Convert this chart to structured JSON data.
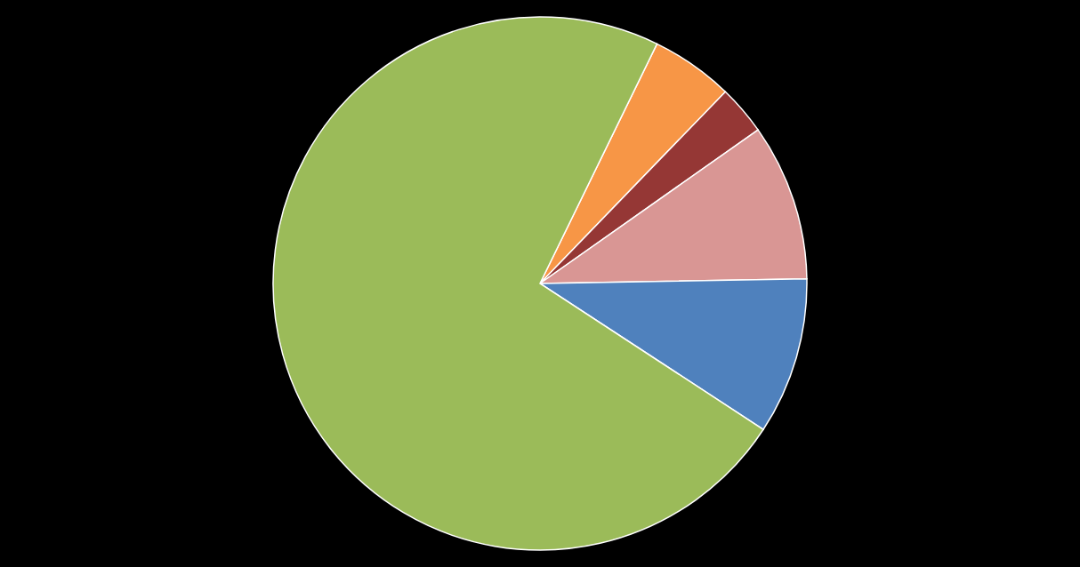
{
  "chart_data": {
    "type": "pie",
    "categories": [
      null,
      null,
      null,
      null,
      null
    ],
    "values": [
      5,
      3,
      9.5,
      9.5,
      73
    ],
    "colors": [
      "#f79646",
      "#953735",
      "#d99694",
      "#4f81bd",
      "#9bbb59"
    ]
  }
}
